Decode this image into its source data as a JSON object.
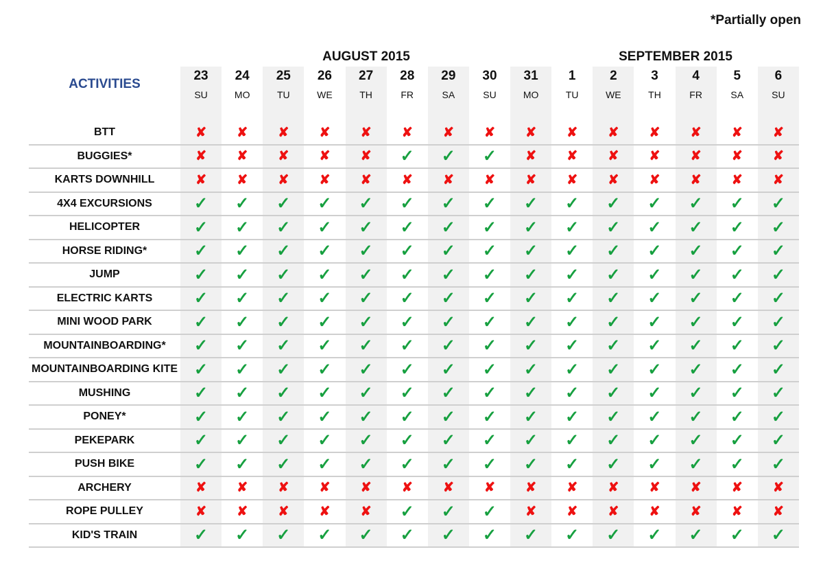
{
  "note": "*Partially open",
  "activities_title": "ACTIVITIES",
  "months": [
    {
      "label": "AUGUST 2015"
    },
    {
      "label": "SEPTEMBER 2015"
    }
  ],
  "days": [
    {
      "num": "23",
      "name": "SU"
    },
    {
      "num": "24",
      "name": "MO"
    },
    {
      "num": "25",
      "name": "TU"
    },
    {
      "num": "26",
      "name": "WE"
    },
    {
      "num": "27",
      "name": "TH"
    },
    {
      "num": "28",
      "name": "FR"
    },
    {
      "num": "29",
      "name": "SA"
    },
    {
      "num": "30",
      "name": "SU"
    },
    {
      "num": "31",
      "name": "MO"
    },
    {
      "num": "1",
      "name": "TU"
    },
    {
      "num": "2",
      "name": "WE"
    },
    {
      "num": "3",
      "name": "TH"
    },
    {
      "num": "4",
      "name": "FR"
    },
    {
      "num": "5",
      "name": "SA"
    },
    {
      "num": "6",
      "name": "SU"
    }
  ],
  "icons": {
    "open": "check-icon",
    "closed": "cross-icon"
  },
  "colors": {
    "open": "#17a040",
    "closed": "#ee1111",
    "title": "#2a4a8f"
  },
  "rows": [
    {
      "label": "BTT",
      "status": "xxxxxxxxxxxxxxx"
    },
    {
      "label": "BUGGIES*",
      "status": "xxxxxvvvxxxxxxx"
    },
    {
      "label": "KARTS DOWNHILL",
      "status": "xxxxxxxxxxxxxxx"
    },
    {
      "label": "4X4 EXCURSIONS",
      "status": "vvvvvvvvvvvvvvv"
    },
    {
      "label": "HELICOPTER",
      "status": "vvvvvvvvvvvvvvv"
    },
    {
      "label": "HORSE RIDING*",
      "status": "vvvvvvvvvvvvvvv"
    },
    {
      "label": "JUMP",
      "status": "vvvvvvvvvvvvvvv"
    },
    {
      "label": "ELECTRIC KARTS",
      "status": "vvvvvvvvvvvvvvv"
    },
    {
      "label": "MINI WOOD PARK",
      "status": "vvvvvvvvvvvvvvv"
    },
    {
      "label": "MOUNTAINBOARDING*",
      "status": "vvvvvvvvvvvvvvv"
    },
    {
      "label": "MOUNTAINBOARDING KITE",
      "status": "vvvvvvvvvvvvvvv"
    },
    {
      "label": "MUSHING",
      "status": "vvvvvvvvvvvvvvv"
    },
    {
      "label": "PONEY*",
      "status": "vvvvvvvvvvvvvvv"
    },
    {
      "label": "PEKEPARK",
      "status": "vvvvvvvvvvvvvvv"
    },
    {
      "label": "PUSH BIKE",
      "status": "vvvvvvvvvvvvvvv"
    },
    {
      "label": "ARCHERY",
      "status": "xxxxxxxxxxxxxxx"
    },
    {
      "label": "ROPE PULLEY",
      "status": "xxxxxvvvxxxxxxx"
    },
    {
      "label": "KID'S TRAIN",
      "status": "vvvvvvvvvvvvvvv"
    }
  ]
}
